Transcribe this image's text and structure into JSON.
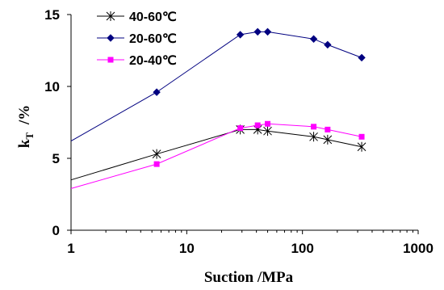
{
  "chart_data": {
    "type": "line",
    "xscale": "log",
    "xlim": [
      1,
      1000
    ],
    "ylim": [
      0,
      15
    ],
    "xticks": [
      1,
      10,
      100,
      1000
    ],
    "xtick_labels": [
      "1",
      "10",
      "100",
      "1000"
    ],
    "yticks": [
      0,
      5,
      10,
      15
    ],
    "ytick_labels": [
      "0",
      "5",
      "10",
      "15"
    ],
    "xlabel": "Suction /MPa",
    "ylabel_main": "k",
    "ylabel_sub": "T",
    "ylabel_unit": "/%",
    "grid": false,
    "legend_position": "top-left",
    "series": [
      {
        "name": "40-60℃",
        "color": "#000000",
        "marker": "asterisk",
        "points": [
          [
            5.5,
            5.3
          ],
          [
            29,
            7.0
          ],
          [
            41,
            7.0
          ],
          [
            50,
            6.9
          ],
          [
            125,
            6.5
          ],
          [
            165,
            6.3
          ],
          [
            325,
            5.8
          ]
        ],
        "fit": [
          [
            1,
            3.5
          ],
          [
            5.5,
            5.3
          ],
          [
            29,
            7.0
          ],
          [
            41,
            7.0
          ],
          [
            50,
            6.9
          ],
          [
            125,
            6.5
          ],
          [
            165,
            6.3
          ],
          [
            325,
            5.8
          ]
        ]
      },
      {
        "name": "20-60℃",
        "color": "#000080",
        "marker": "diamond",
        "points": [
          [
            5.5,
            9.6
          ],
          [
            29,
            13.6
          ],
          [
            41,
            13.8
          ],
          [
            50,
            13.8
          ],
          [
            125,
            13.3
          ],
          [
            165,
            12.9
          ],
          [
            325,
            12.0
          ]
        ],
        "fit": [
          [
            1,
            6.2
          ],
          [
            5.5,
            9.6
          ],
          [
            29,
            13.6
          ],
          [
            41,
            13.8
          ],
          [
            50,
            13.8
          ],
          [
            125,
            13.3
          ],
          [
            165,
            12.9
          ],
          [
            325,
            12.0
          ]
        ]
      },
      {
        "name": "20-40℃",
        "color": "#ff00ff",
        "marker": "square",
        "points": [
          [
            5.5,
            4.6
          ],
          [
            29,
            7.1
          ],
          [
            41,
            7.3
          ],
          [
            50,
            7.4
          ],
          [
            125,
            7.2
          ],
          [
            165,
            7.0
          ],
          [
            325,
            6.5
          ]
        ],
        "fit": [
          [
            1,
            2.9
          ],
          [
            5.5,
            4.6
          ],
          [
            29,
            7.1
          ],
          [
            41,
            7.3
          ],
          [
            50,
            7.4
          ],
          [
            125,
            7.2
          ],
          [
            165,
            7.0
          ],
          [
            325,
            6.5
          ]
        ]
      }
    ]
  }
}
